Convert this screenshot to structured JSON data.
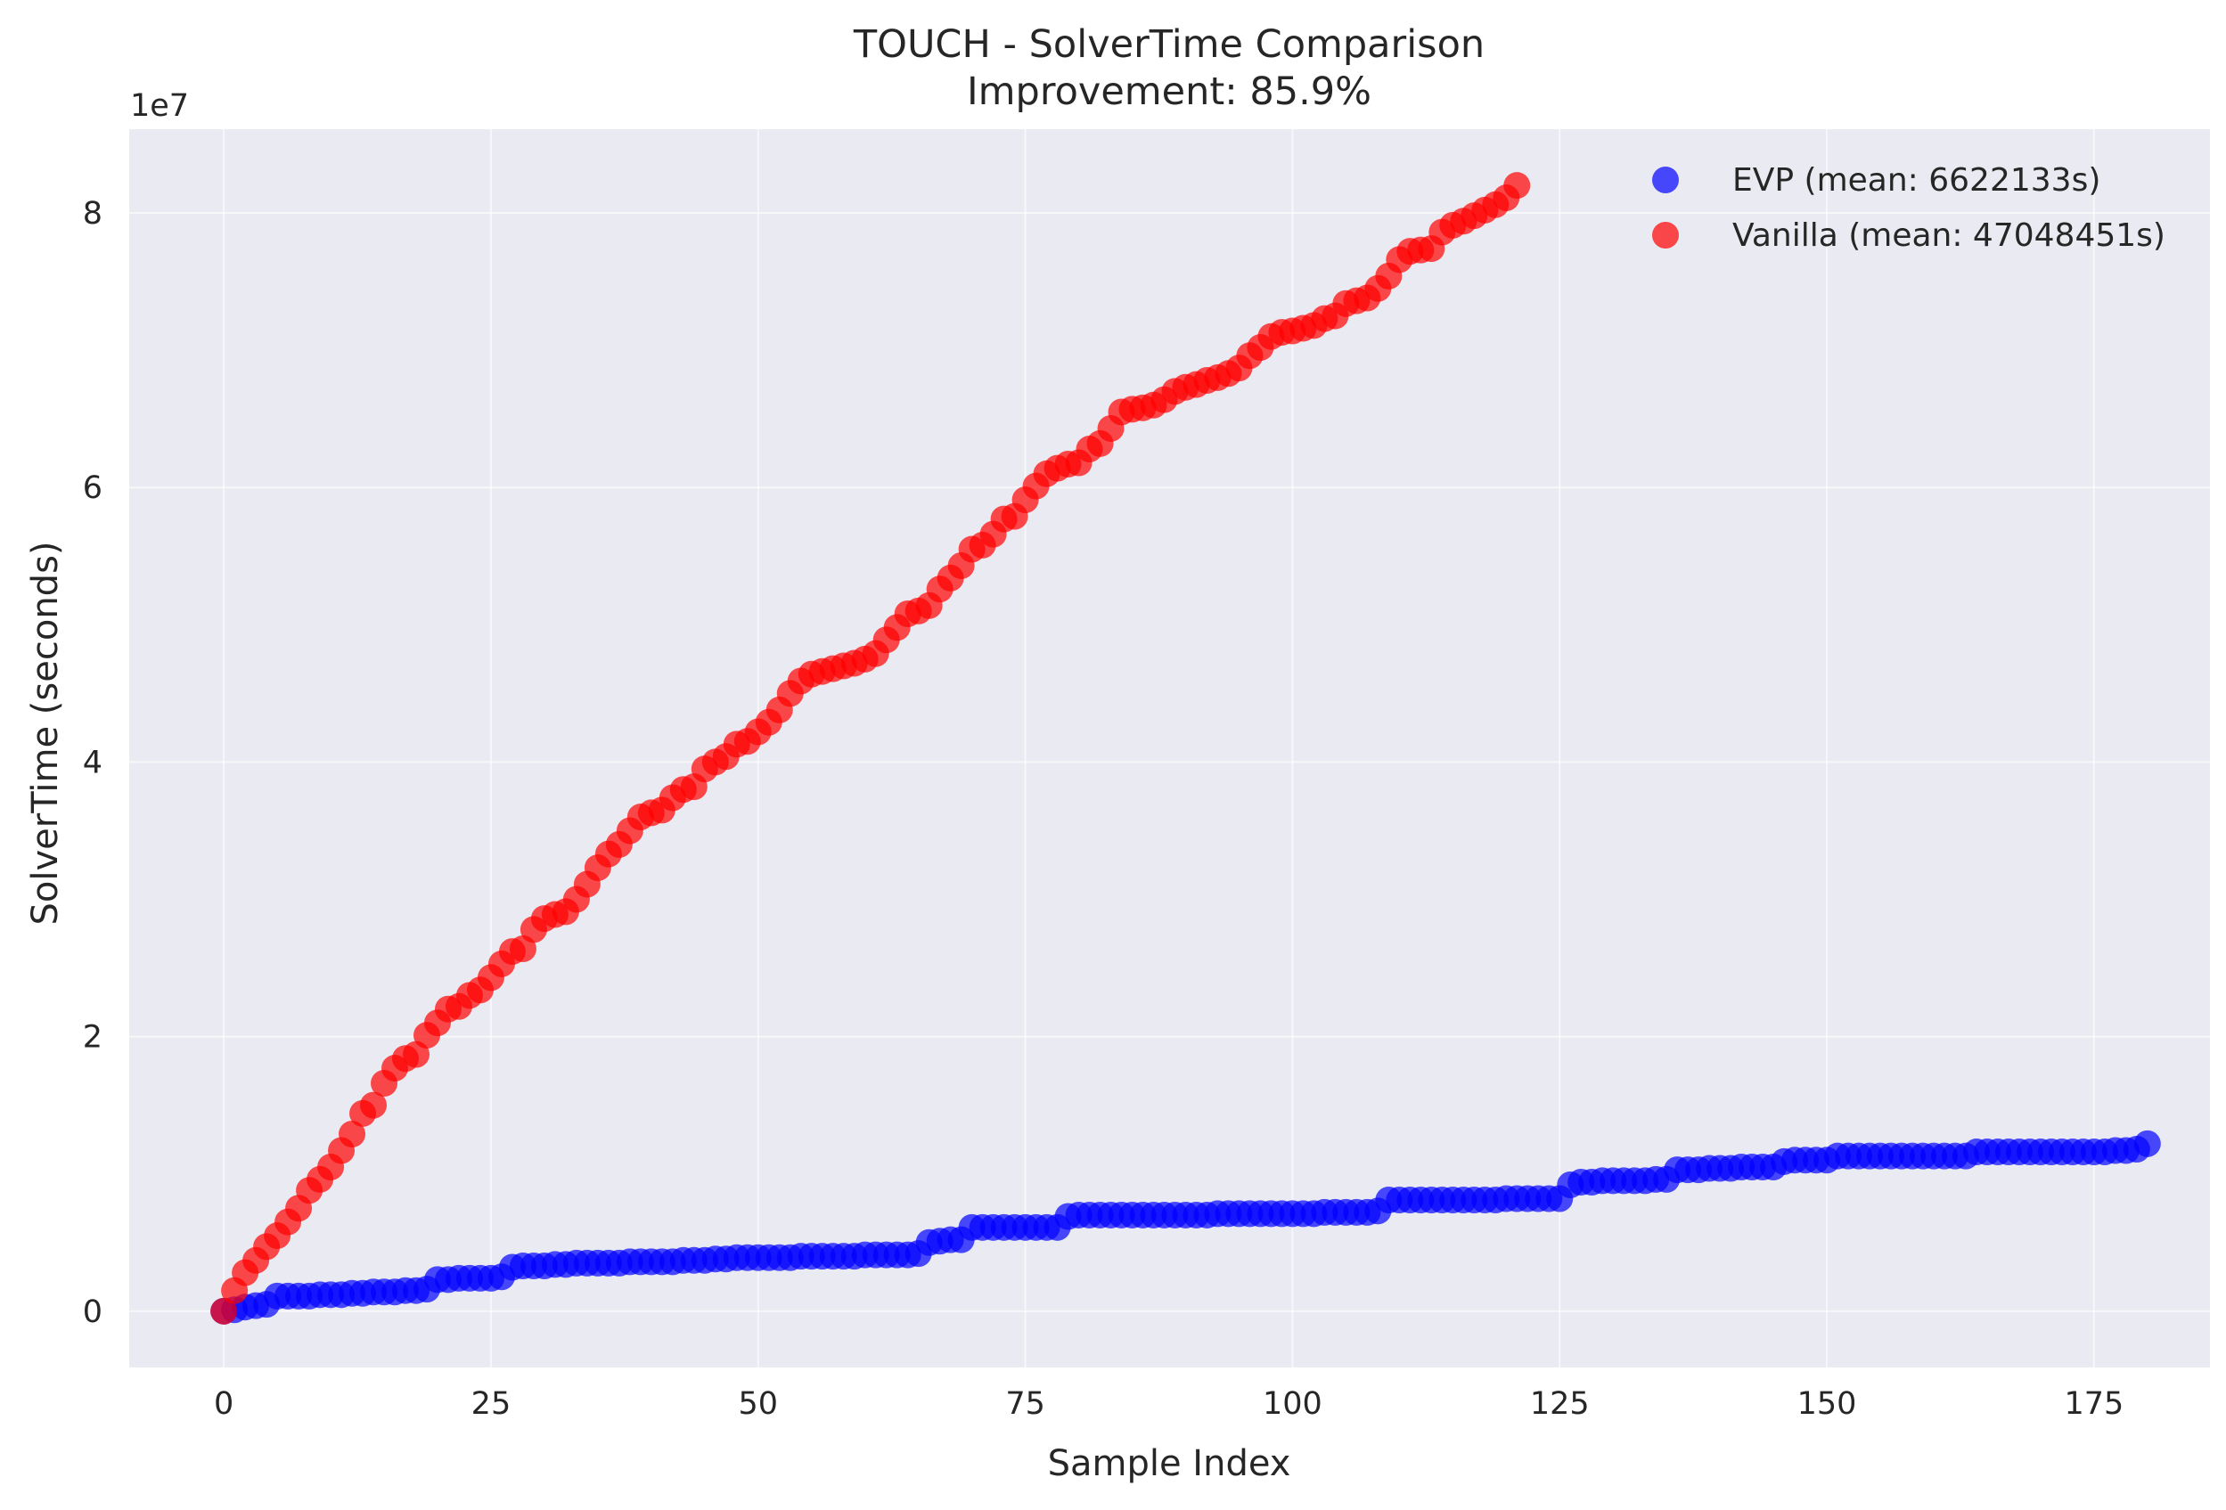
{
  "colors": {
    "background": "#eaeaf2",
    "grid": "#ffffff",
    "evp": "#0000ff",
    "vanilla": "#ff0000"
  },
  "chart_data": {
    "type": "scatter",
    "title": "TOUCH - SolverTime Comparison",
    "subtitle": "Improvement: 85.9%",
    "xlabel": "Sample Index",
    "ylabel": "SolverTime (seconds)",
    "y_offset_label": "1e7",
    "xlim": [
      -8.85,
      185.85
    ],
    "ylim": [
      -4100000,
      86100000
    ],
    "x_ticks": [
      0,
      25,
      50,
      75,
      100,
      125,
      150,
      175
    ],
    "x_tick_labels": [
      "0",
      "25",
      "50",
      "75",
      "100",
      "125",
      "150",
      "175"
    ],
    "y_ticks": [
      0,
      20000000,
      40000000,
      60000000,
      80000000
    ],
    "y_tick_labels": [
      "0",
      "2",
      "4",
      "6",
      "8"
    ],
    "grid": true,
    "legend_position": "top-right",
    "series": [
      {
        "name": "EVP (mean: 6622133s)",
        "color": "#0000ff",
        "x_start": 0,
        "y": [
          0,
          100000,
          300000,
          400000,
          500000,
          1100000,
          1100000,
          1100000,
          1100000,
          1200000,
          1200000,
          1200000,
          1300000,
          1300000,
          1400000,
          1400000,
          1400000,
          1500000,
          1500000,
          1600000,
          2300000,
          2300000,
          2400000,
          2400000,
          2400000,
          2400000,
          2500000,
          3200000,
          3300000,
          3300000,
          3300000,
          3400000,
          3400000,
          3500000,
          3500000,
          3500000,
          3500000,
          3500000,
          3600000,
          3600000,
          3600000,
          3600000,
          3600000,
          3700000,
          3700000,
          3700000,
          3800000,
          3800000,
          3900000,
          3900000,
          3900000,
          3900000,
          3900000,
          3900000,
          4000000,
          4000000,
          4000000,
          4000000,
          4000000,
          4000000,
          4100000,
          4100000,
          4100000,
          4100000,
          4100000,
          4200000,
          5000000,
          5100000,
          5200000,
          5200000,
          6100000,
          6100000,
          6100000,
          6100000,
          6100000,
          6100000,
          6100000,
          6100000,
          6100000,
          6900000,
          7000000,
          7000000,
          7000000,
          7000000,
          7000000,
          7000000,
          7000000,
          7000000,
          7000000,
          7000000,
          7000000,
          7000000,
          7000000,
          7100000,
          7100000,
          7100000,
          7100000,
          7100000,
          7100000,
          7100000,
          7100000,
          7100000,
          7100000,
          7200000,
          7200000,
          7200000,
          7200000,
          7200000,
          7300000,
          8100000,
          8100000,
          8100000,
          8100000,
          8100000,
          8100000,
          8100000,
          8100000,
          8100000,
          8100000,
          8100000,
          8200000,
          8200000,
          8200000,
          8200000,
          8200000,
          8200000,
          9200000,
          9400000,
          9400000,
          9500000,
          9500000,
          9500000,
          9500000,
          9500000,
          9600000,
          9600000,
          10300000,
          10300000,
          10300000,
          10400000,
          10400000,
          10400000,
          10500000,
          10500000,
          10500000,
          10500000,
          10900000,
          11000000,
          11000000,
          11000000,
          11000000,
          11300000,
          11300000,
          11300000,
          11300000,
          11300000,
          11300000,
          11300000,
          11300000,
          11300000,
          11300000,
          11300000,
          11300000,
          11300000,
          11600000,
          11600000,
          11600000,
          11600000,
          11600000,
          11600000,
          11600000,
          11600000,
          11600000,
          11600000,
          11600000,
          11600000,
          11600000,
          11700000,
          11700000,
          11800000,
          12200000
        ]
      },
      {
        "name": "Vanilla (mean: 47048451s)",
        "color": "#ff0000",
        "x_start": 0,
        "y": [
          0,
          1500000,
          2800000,
          3700000,
          4700000,
          5500000,
          6500000,
          7500000,
          8800000,
          9600000,
          10500000,
          11700000,
          12900000,
          14400000,
          15000000,
          16600000,
          17700000,
          18400000,
          18700000,
          20100000,
          21000000,
          22000000,
          22200000,
          23000000,
          23400000,
          24300000,
          25300000,
          26200000,
          26400000,
          27800000,
          28600000,
          28900000,
          29100000,
          30000000,
          31100000,
          32300000,
          33300000,
          34000000,
          35000000,
          36000000,
          36300000,
          36500000,
          37400000,
          38000000,
          38200000,
          39500000,
          40000000,
          40400000,
          41300000,
          41500000,
          42200000,
          42900000,
          43800000,
          45000000,
          45900000,
          46400000,
          46600000,
          46800000,
          47000000,
          47200000,
          47500000,
          47900000,
          48900000,
          49800000,
          50800000,
          51000000,
          51400000,
          52600000,
          53400000,
          54300000,
          55500000,
          55800000,
          56600000,
          57700000,
          57900000,
          59100000,
          60100000,
          61000000,
          61400000,
          61700000,
          61800000,
          62800000,
          63200000,
          64300000,
          65500000,
          65700000,
          65800000,
          66000000,
          66400000,
          67000000,
          67300000,
          67500000,
          67800000,
          68000000,
          68300000,
          68700000,
          69600000,
          70200000,
          71000000,
          71300000,
          71400000,
          71600000,
          71800000,
          72300000,
          72500000,
          73400000,
          73600000,
          73800000,
          74500000,
          75400000,
          76600000,
          77200000,
          77300000,
          77400000,
          78600000,
          79100000,
          79400000,
          79800000,
          80200000,
          80600000,
          81100000,
          82000000
        ]
      }
    ]
  }
}
